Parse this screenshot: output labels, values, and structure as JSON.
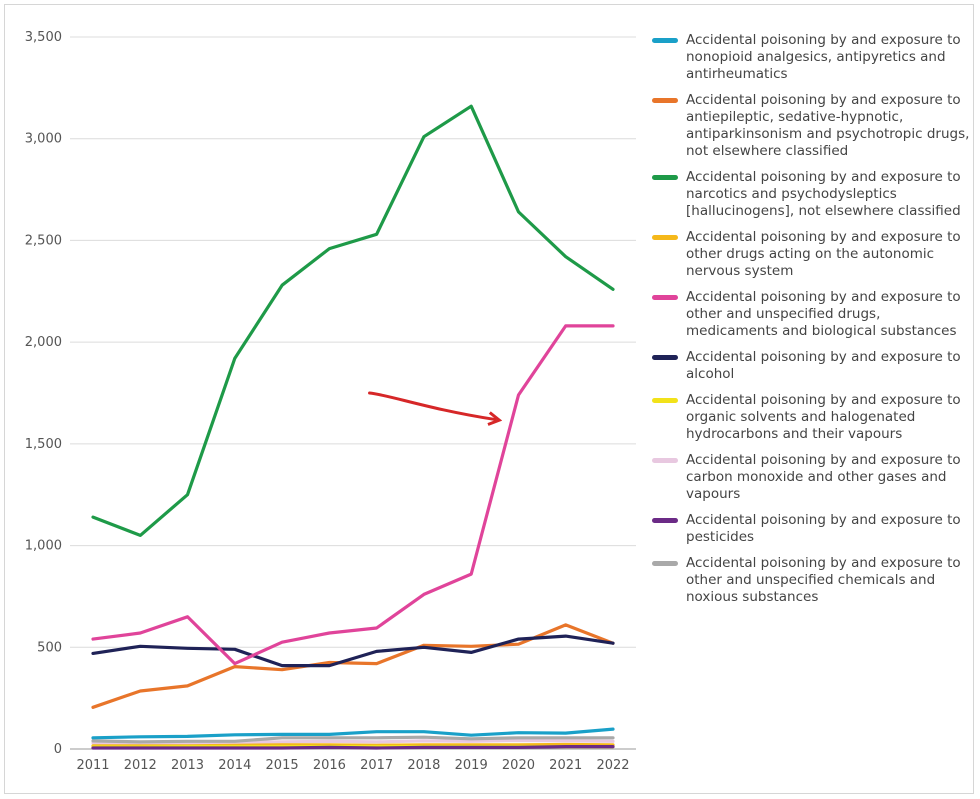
{
  "chart_data": {
    "type": "line",
    "categories": [
      "2011",
      "2012",
      "2013",
      "2014",
      "2015",
      "2016",
      "2017",
      "2018",
      "2019",
      "2020",
      "2021",
      "2022"
    ],
    "ylim": [
      0,
      3500
    ],
    "yticks": [
      0,
      500,
      1000,
      1500,
      2000,
      2500,
      3000,
      3500
    ],
    "ytick_labels": [
      "0",
      "500",
      "1,000",
      "1,500",
      "2,000",
      "2,500",
      "3,000",
      "3,500"
    ],
    "grid": "horizontal",
    "legend_position": "right",
    "annotation": {
      "type": "arrow",
      "color": "#d62728",
      "from": {
        "x": 2016.85,
        "y": 1750
      },
      "to": {
        "x": 2019.5,
        "y": 1620
      }
    },
    "series": [
      {
        "name": "Accidental poisoning by and exposure to nonopioid analgesics, antipyretics and antirheumatics",
        "color": "#1aa0c8",
        "values": [
          55,
          60,
          62,
          70,
          72,
          72,
          85,
          85,
          68,
          80,
          78,
          98
        ]
      },
      {
        "name": "Accidental poisoning by and exposure to antiepileptic, sedative-hypnotic, antiparkinsonism and psychotropic drugs, not elsewhere classified",
        "color": "#e8752a",
        "values": [
          205,
          285,
          310,
          405,
          390,
          425,
          420,
          510,
          505,
          515,
          610,
          520
        ]
      },
      {
        "name": "Accidental poisoning by and exposure to narcotics and psychodysleptics [hallucinogens], not elsewhere classified",
        "color": "#1e9a48",
        "values": [
          1140,
          1050,
          1250,
          1920,
          2280,
          2460,
          2530,
          3010,
          3160,
          2640,
          2420,
          2260
        ]
      },
      {
        "name": "Accidental poisoning by and exposure to other drugs acting on the autonomic nervous system",
        "color": "#f5b81a",
        "values": [
          15,
          15,
          15,
          18,
          20,
          20,
          18,
          20,
          20,
          20,
          22,
          20
        ]
      },
      {
        "name": "Accidental poisoning by and exposure to other and unspecified drugs, medicaments and biological substances",
        "color": "#e0449a",
        "values": [
          540,
          570,
          650,
          420,
          525,
          570,
          595,
          760,
          860,
          1740,
          2080,
          2080
        ]
      },
      {
        "name": "Accidental poisoning by and exposure to alcohol",
        "color": "#1f2257",
        "values": [
          470,
          505,
          495,
          490,
          410,
          410,
          480,
          500,
          475,
          540,
          555,
          520
        ]
      },
      {
        "name": "Accidental poisoning by and exposure to organic solvents and halogenated hydrocarbons and their vapours",
        "color": "#f2e21a",
        "values": [
          10,
          10,
          12,
          12,
          12,
          12,
          12,
          12,
          12,
          12,
          12,
          12
        ]
      },
      {
        "name": "Accidental poisoning by and exposure to carbon monoxide and other gases and vapours",
        "color": "#e8c8e0",
        "values": [
          30,
          28,
          30,
          32,
          35,
          38,
          35,
          40,
          38,
          42,
          40,
          38
        ]
      },
      {
        "name": "Accidental poisoning by and exposure to pesticides",
        "color": "#6b2a86",
        "values": [
          5,
          5,
          5,
          5,
          5,
          8,
          5,
          8,
          8,
          8,
          12,
          12
        ]
      },
      {
        "name": "Accidental poisoning by and exposure to other and unspecified chemicals and noxious substances",
        "color": "#a9a9a9",
        "values": [
          40,
          35,
          38,
          38,
          55,
          55,
          55,
          58,
          50,
          55,
          55,
          55
        ]
      }
    ]
  }
}
